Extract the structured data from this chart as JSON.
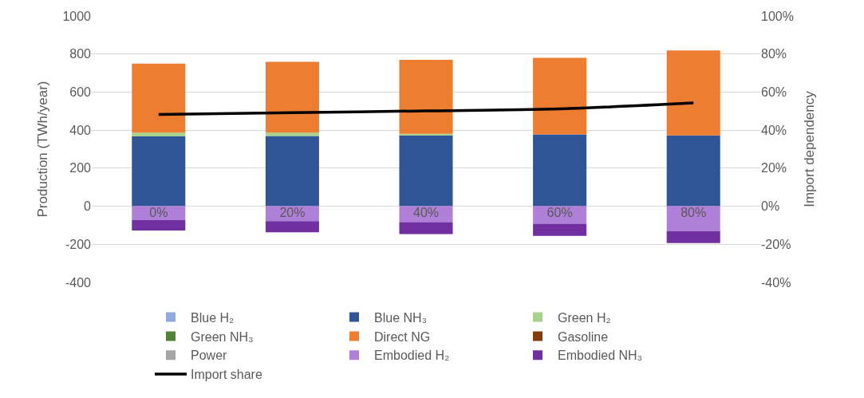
{
  "chart_data": {
    "type": "bar",
    "stacked": true,
    "ylabel": "Production (TWh/year)",
    "y2label": "Import dependency",
    "categories": [
      "0%",
      "20%",
      "40%",
      "60%",
      "80%"
    ],
    "ylim": [
      -400,
      1000
    ],
    "yticks": [
      -400,
      -200,
      0,
      200,
      400,
      600,
      800,
      1000
    ],
    "y2lim": [
      -40,
      100
    ],
    "y2ticks": [
      {
        "value": -40,
        "label": "-40%"
      },
      {
        "value": -20,
        "label": "-20%"
      },
      {
        "value": 0,
        "label": "0%"
      },
      {
        "value": 20,
        "label": "20%"
      },
      {
        "value": 40,
        "label": "40%"
      },
      {
        "value": 60,
        "label": "60%"
      },
      {
        "value": 80,
        "label": "80%"
      },
      {
        "value": 100,
        "label": "100%"
      }
    ],
    "grid": "y",
    "legend": "bottom",
    "marker": "none",
    "line_style": "solid",
    "series": [
      {
        "name": "Blue H₂",
        "color": "#8faadc",
        "values": [
          0,
          0,
          0,
          0,
          0
        ]
      },
      {
        "name": "Blue NH₃",
        "color": "#2f5597",
        "values": [
          367,
          369,
          374,
          378,
          372
        ]
      },
      {
        "name": "Green H₂",
        "color": "#a9d18e",
        "values": [
          20,
          18,
          7,
          0,
          0
        ]
      },
      {
        "name": "Green NH₃",
        "color": "#548235",
        "values": [
          0,
          0,
          0,
          0,
          0
        ]
      },
      {
        "name": "Direct NG",
        "color": "#ed7d31",
        "values": [
          363,
          372,
          388,
          402,
          447
        ]
      },
      {
        "name": "Gasoline",
        "color": "#843c0c",
        "values": [
          0,
          0,
          0,
          0,
          0
        ]
      },
      {
        "name": "Power",
        "color": "#a5a5a5",
        "values": [
          0,
          0,
          0,
          0,
          0
        ]
      },
      {
        "name": "Embodied H₂",
        "color": "#b07fd8",
        "values": [
          -72,
          -78,
          -84,
          -92,
          -132
        ]
      },
      {
        "name": "Embodied NH₃",
        "color": "#7030a0",
        "values": [
          -56,
          -59,
          -62,
          -64,
          -62
        ]
      },
      {
        "name": "Import share",
        "type": "line",
        "axis": "y2",
        "color": "#000000",
        "values": [
          48.2,
          49.2,
          50.1,
          51.2,
          54.3
        ]
      }
    ]
  }
}
